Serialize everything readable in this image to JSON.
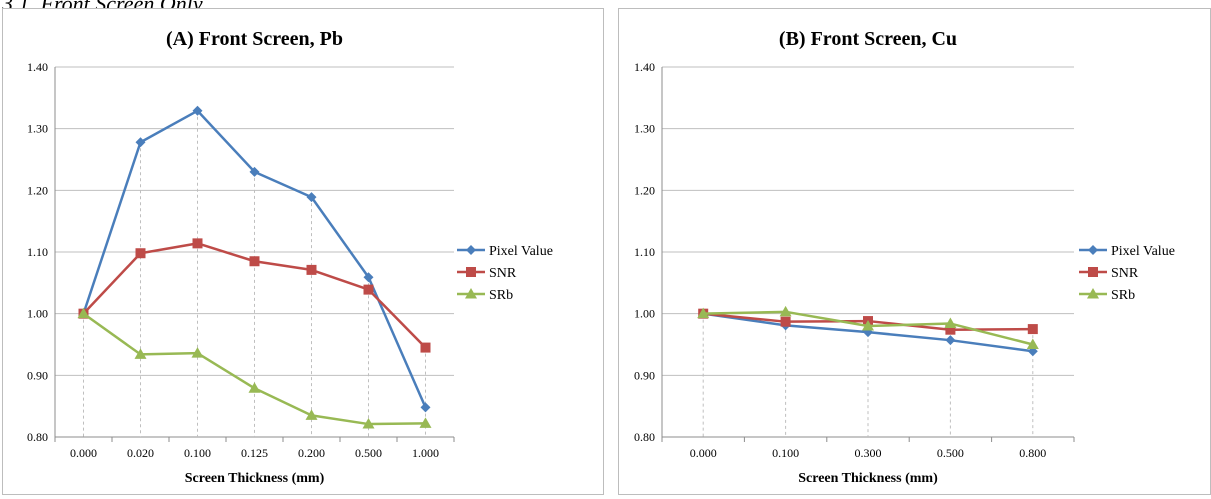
{
  "caption": "3.1. Front Screen Only",
  "chart_data": [
    {
      "type": "line",
      "title": "(A) Front Screen, Pb",
      "xlabel": "Screen Thickness (mm)",
      "ylabel": "",
      "categories": [
        "0.000",
        "0.020",
        "0.100",
        "0.125",
        "0.200",
        "0.500",
        "1.000"
      ],
      "ylim": [
        0.8,
        1.4
      ],
      "yticks": [
        "0.80",
        "0.90",
        "1.00",
        "1.10",
        "1.20",
        "1.30",
        "1.40"
      ],
      "grid": true,
      "legend_position": "right",
      "series": [
        {
          "name": "Pixel Value",
          "color": "#4a7ebb",
          "marker": "diamond",
          "values": [
            1.0,
            1.278,
            1.329,
            1.23,
            1.189,
            1.059,
            0.848
          ]
        },
        {
          "name": "SNR",
          "color": "#be4b48",
          "marker": "square",
          "values": [
            1.0,
            1.098,
            1.114,
            1.085,
            1.071,
            1.039,
            0.945
          ]
        },
        {
          "name": "SRb",
          "color": "#98b954",
          "marker": "triangle",
          "values": [
            1.0,
            0.934,
            0.936,
            0.879,
            0.835,
            0.821,
            0.822
          ]
        }
      ]
    },
    {
      "type": "line",
      "title": "(B) Front Screen, Cu",
      "xlabel": "Screen Thickness (mm)",
      "ylabel": "",
      "categories": [
        "0.000",
        "0.100",
        "0.300",
        "0.500",
        "0.800"
      ],
      "ylim": [
        0.8,
        1.4
      ],
      "yticks": [
        "0.80",
        "0.90",
        "1.00",
        "1.10",
        "1.20",
        "1.30",
        "1.40"
      ],
      "grid": true,
      "legend_position": "right",
      "series": [
        {
          "name": "Pixel Value",
          "color": "#4a7ebb",
          "marker": "diamond",
          "values": [
            1.0,
            0.981,
            0.97,
            0.957,
            0.939
          ]
        },
        {
          "name": "SNR",
          "color": "#be4b48",
          "marker": "square",
          "values": [
            1.0,
            0.987,
            0.988,
            0.974,
            0.975
          ]
        },
        {
          "name": "SRb",
          "color": "#98b954",
          "marker": "triangle",
          "values": [
            1.0,
            1.003,
            0.98,
            0.984,
            0.95
          ]
        }
      ]
    }
  ]
}
